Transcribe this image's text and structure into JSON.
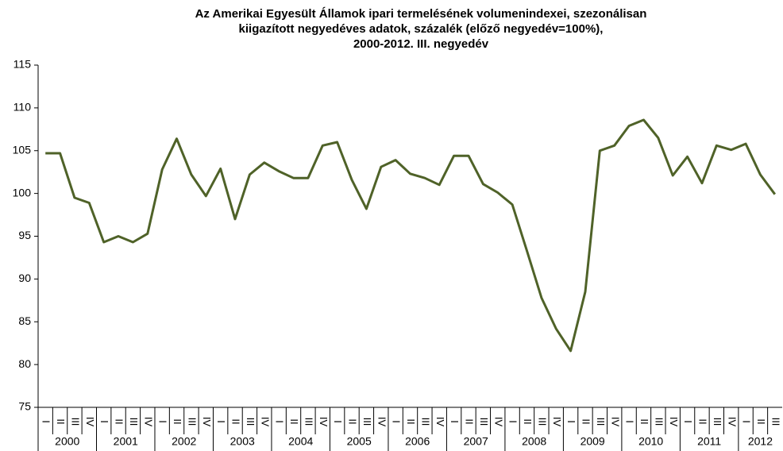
{
  "chart_data": {
    "type": "line",
    "title": [
      "Az Amerikai Egyesült Államok ipari termelésének volumenindexei, szezonálisan",
      "kiigazított negyedéves adatok, százalék (előző negyedév=100%),",
      "2000-2012. III. negyedév"
    ],
    "categories": [
      "I",
      "II",
      "III",
      "IV",
      "I",
      "II",
      "III",
      "IV",
      "I",
      "II",
      "III",
      "IV",
      "I",
      "II",
      "III",
      "IV",
      "I",
      "II",
      "III",
      "IV",
      "I",
      "II",
      "III",
      "IV",
      "I",
      "II",
      "III",
      "IV",
      "I",
      "II",
      "III",
      "IV",
      "I",
      "II",
      "III",
      "IV",
      "I",
      "II",
      "III",
      "IV",
      "I",
      "II",
      "III",
      "IV",
      "I",
      "II",
      "III",
      "IV",
      "I",
      "II",
      "III"
    ],
    "groups": [
      "2000",
      "2001",
      "2002",
      "2003",
      "2004",
      "2005",
      "2006",
      "2007",
      "2008",
      "2009",
      "2010",
      "2011",
      "2012"
    ],
    "series": [
      {
        "color": "#4f6228",
        "values": [
          104.7,
          104.7,
          99.5,
          98.9,
          94.3,
          95.0,
          94.3,
          95.3,
          102.8,
          106.4,
          102.2,
          99.7,
          102.9,
          97.0,
          102.2,
          103.6,
          102.6,
          101.8,
          101.8,
          105.6,
          106.0,
          101.6,
          98.2,
          103.1,
          103.9,
          102.3,
          101.8,
          101.0,
          104.4,
          104.4,
          101.1,
          100.1,
          98.7,
          93.3,
          87.8,
          84.2,
          81.6,
          88.5,
          105.0,
          105.6,
          107.9,
          108.6,
          106.5,
          102.1,
          104.3,
          101.2,
          105.6,
          105.1,
          105.8,
          102.2,
          99.9
        ]
      }
    ],
    "ylim": [
      75,
      115
    ],
    "yticks": [
      75,
      80,
      85,
      90,
      95,
      100,
      105,
      110,
      115
    ],
    "grid": false
  }
}
